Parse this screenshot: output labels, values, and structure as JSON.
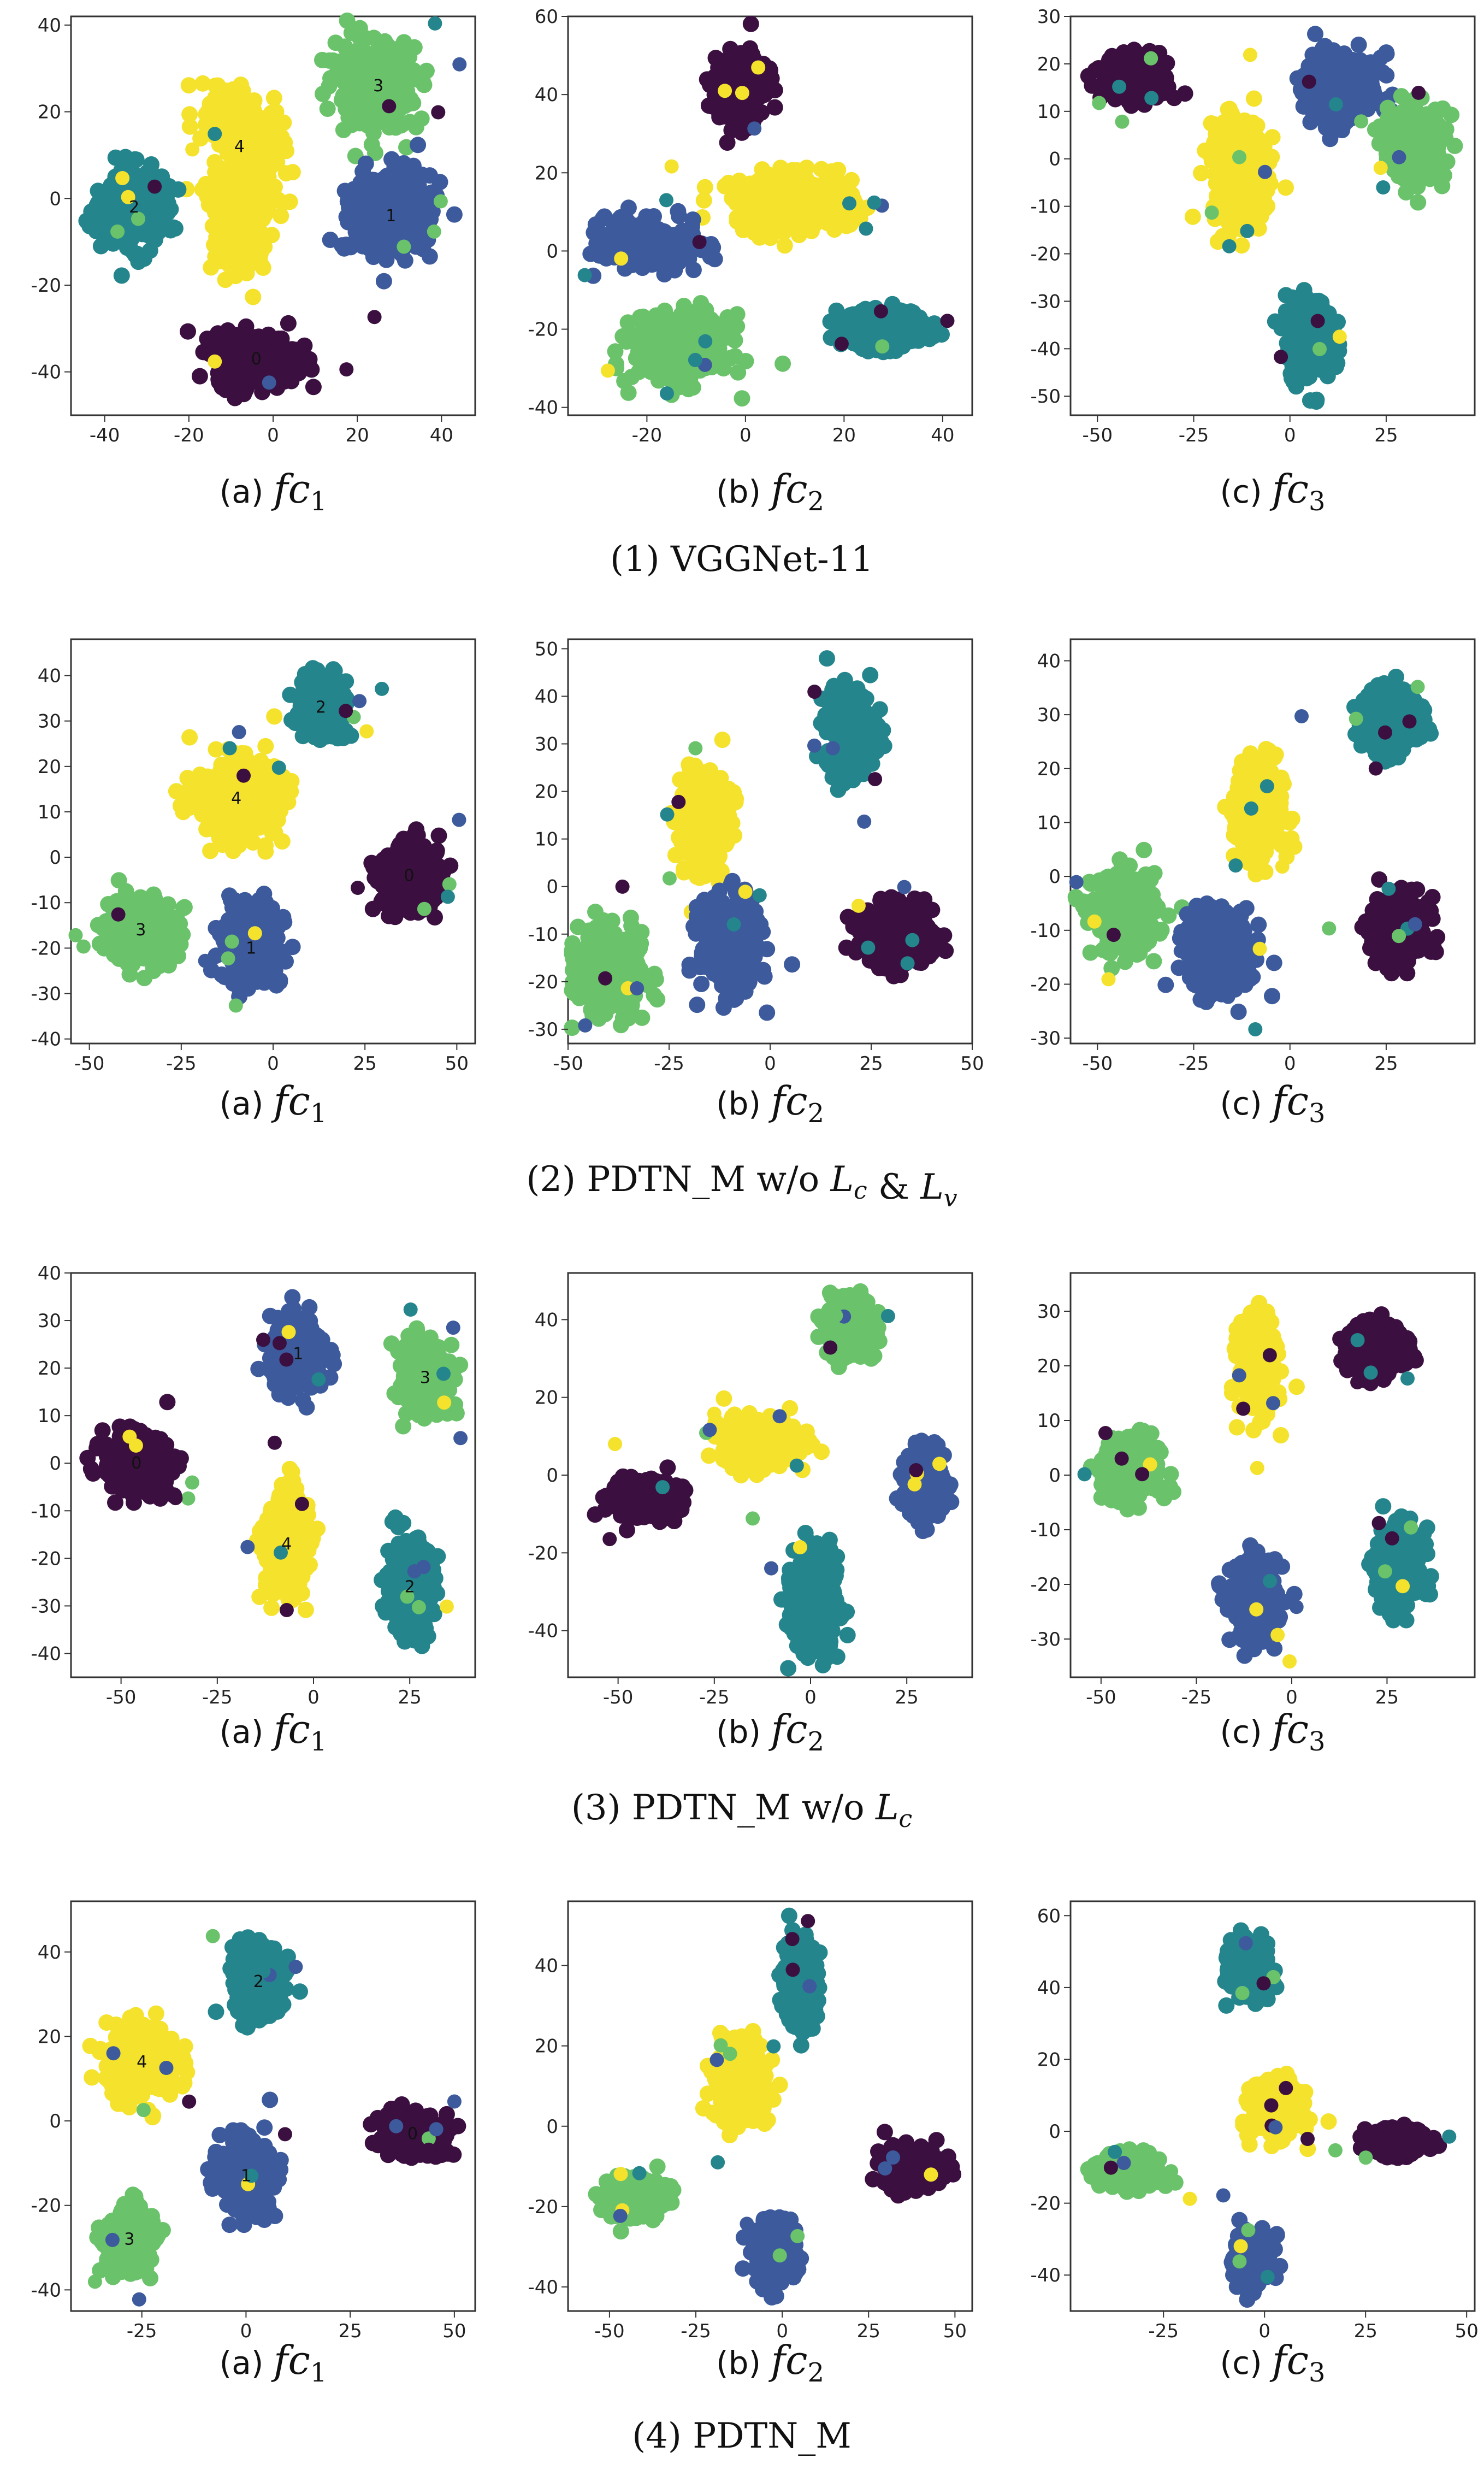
{
  "colors": {
    "c0": "#3b0f3f",
    "c1": "#3c5a9c",
    "c2": "#24858c",
    "c3": "#6ac36b",
    "c4": "#f5e22c"
  },
  "chart_data": [
    {
      "type": "scatter",
      "group": "(1) VGGNet-11",
      "panel": "(a)",
      "fc_sub": "1",
      "xlim": [
        -48,
        48
      ],
      "ylim": [
        -50,
        42
      ],
      "xticks": [
        -40,
        -20,
        0,
        20,
        40
      ],
      "yticks": [
        -40,
        -20,
        0,
        20,
        40
      ],
      "clusters": [
        {
          "cls": 4,
          "label": "4",
          "cx": -8,
          "cy": 12,
          "sx": 8,
          "sy": 8,
          "n": 200,
          "shape": [
            [
              -14,
              22
            ],
            [
              -2,
              12
            ],
            [
              -8,
              2
            ],
            [
              -6,
              -14
            ]
          ]
        },
        {
          "cls": 3,
          "label": "3",
          "cx": 25,
          "cy": 26,
          "sx": 8,
          "sy": 8,
          "n": 180
        },
        {
          "cls": 2,
          "label": "2",
          "cx": -33,
          "cy": -2,
          "sx": 6,
          "sy": 7,
          "n": 170
        },
        {
          "cls": 1,
          "label": "1",
          "cx": 28,
          "cy": -4,
          "sx": 8,
          "sy": 8,
          "n": 180
        },
        {
          "cls": 0,
          "label": "0",
          "cx": -4,
          "cy": -37,
          "sx": 8,
          "sy": 5,
          "n": 170
        }
      ]
    },
    {
      "type": "scatter",
      "group": "(1) VGGNet-11",
      "panel": "(b)",
      "fc_sub": "2",
      "xlim": [
        -36,
        46
      ],
      "ylim": [
        -42,
        60
      ],
      "xticks": [
        -20,
        0,
        20,
        40
      ],
      "yticks": [
        -40,
        -20,
        0,
        20,
        40,
        60
      ],
      "clusters": [
        {
          "cls": 0,
          "label": "",
          "cx": -1,
          "cy": 42,
          "sx": 4,
          "sy": 7,
          "n": 150
        },
        {
          "cls": 4,
          "label": "",
          "cx": 10,
          "cy": 12,
          "sx": 10,
          "sy": 6,
          "n": 190
        },
        {
          "cls": 1,
          "label": "",
          "cx": -20,
          "cy": 2,
          "sx": 8,
          "sy": 5,
          "n": 160
        },
        {
          "cls": 3,
          "label": "",
          "cx": -13,
          "cy": -25,
          "sx": 8,
          "sy": 7,
          "n": 170
        },
        {
          "cls": 2,
          "label": "",
          "cx": 28,
          "cy": -20,
          "sx": 7,
          "sy": 4,
          "n": 160
        }
      ]
    },
    {
      "type": "scatter",
      "group": "(1) VGGNet-11",
      "panel": "(c)",
      "fc_sub": "3",
      "xlim": [
        -57,
        48
      ],
      "ylim": [
        -54,
        30
      ],
      "xticks": [
        -50,
        -25,
        0,
        25
      ],
      "yticks": [
        -50,
        -40,
        -30,
        -20,
        -10,
        0,
        10,
        20,
        30
      ],
      "clusters": [
        {
          "cls": 0,
          "label": "",
          "cx": -40,
          "cy": 17,
          "sx": 7,
          "sy": 4,
          "n": 160
        },
        {
          "cls": 1,
          "label": "",
          "cx": 13,
          "cy": 15,
          "sx": 8,
          "sy": 6,
          "n": 160
        },
        {
          "cls": 3,
          "label": "",
          "cx": 33,
          "cy": 3,
          "sx": 6,
          "sy": 6,
          "n": 160
        },
        {
          "cls": 4,
          "label": "",
          "cx": -13,
          "cy": -3,
          "sx": 6,
          "sy": 9,
          "n": 170
        },
        {
          "cls": 2,
          "label": "",
          "cx": 5,
          "cy": -38,
          "sx": 5,
          "sy": 7,
          "n": 150
        }
      ]
    },
    {
      "type": "scatter",
      "group": "(2) PDTN_M w/o Lc & Lv",
      "panel": "(a)",
      "fc_sub": "1",
      "xlim": [
        -55,
        55
      ],
      "ylim": [
        -41,
        48
      ],
      "xticks": [
        -50,
        -25,
        0,
        25,
        50
      ],
      "yticks": [
        -40,
        -30,
        -20,
        -10,
        0,
        10,
        20,
        30,
        40
      ],
      "clusters": [
        {
          "cls": 2,
          "label": "2",
          "cx": 13,
          "cy": 33,
          "sx": 5,
          "sy": 5,
          "n": 150
        },
        {
          "cls": 4,
          "label": "4",
          "cx": -10,
          "cy": 13,
          "sx": 9,
          "sy": 7,
          "n": 190
        },
        {
          "cls": 0,
          "label": "0",
          "cx": 37,
          "cy": -4,
          "sx": 7,
          "sy": 6,
          "n": 160
        },
        {
          "cls": 3,
          "label": "3",
          "cx": -36,
          "cy": -16,
          "sx": 8,
          "sy": 6,
          "n": 170
        },
        {
          "cls": 1,
          "label": "1",
          "cx": -6,
          "cy": -20,
          "sx": 6,
          "sy": 7,
          "n": 170
        }
      ]
    },
    {
      "type": "scatter",
      "group": "(2) PDTN_M w/o Lc & Lv",
      "panel": "(b)",
      "fc_sub": "2",
      "xlim": [
        -50,
        50
      ],
      "ylim": [
        -33,
        52
      ],
      "xticks": [
        -50,
        -25,
        0,
        25,
        50
      ],
      "yticks": [
        -30,
        -20,
        -10,
        0,
        10,
        20,
        30,
        40,
        50
      ],
      "clusters": [
        {
          "cls": 2,
          "label": "",
          "cx": 20,
          "cy": 33,
          "sx": 5,
          "sy": 7,
          "n": 150
        },
        {
          "cls": 4,
          "label": "",
          "cx": -16,
          "cy": 13,
          "sx": 5,
          "sy": 9,
          "n": 180
        },
        {
          "cls": 0,
          "label": "",
          "cx": 32,
          "cy": -10,
          "sx": 7,
          "sy": 5,
          "n": 160
        },
        {
          "cls": 3,
          "label": "",
          "cx": -40,
          "cy": -18,
          "sx": 7,
          "sy": 7,
          "n": 170
        },
        {
          "cls": 1,
          "label": "",
          "cx": -10,
          "cy": -12,
          "sx": 6,
          "sy": 8,
          "n": 170
        }
      ]
    },
    {
      "type": "scatter",
      "group": "(2) PDTN_M w/o Lc & Lv",
      "panel": "(c)",
      "fc_sub": "3",
      "xlim": [
        -57,
        48
      ],
      "ylim": [
        -31,
        44
      ],
      "xticks": [
        -50,
        -25,
        0,
        25
      ],
      "yticks": [
        -30,
        -20,
        -10,
        0,
        10,
        20,
        30,
        40
      ],
      "clusters": [
        {
          "cls": 2,
          "label": "",
          "cx": 26,
          "cy": 29,
          "sx": 6,
          "sy": 5,
          "n": 150
        },
        {
          "cls": 4,
          "label": "",
          "cx": -8,
          "cy": 12,
          "sx": 5,
          "sy": 8,
          "n": 170
        },
        {
          "cls": 0,
          "label": "",
          "cx": 28,
          "cy": -10,
          "sx": 6,
          "sy": 5,
          "n": 160
        },
        {
          "cls": 3,
          "label": "",
          "cx": -43,
          "cy": -7,
          "sx": 7,
          "sy": 6,
          "n": 170
        },
        {
          "cls": 1,
          "label": "",
          "cx": -18,
          "cy": -14,
          "sx": 7,
          "sy": 6,
          "n": 170
        }
      ]
    },
    {
      "type": "scatter",
      "group": "(3) PDTN_M w/o Lc",
      "panel": "(a)",
      "fc_sub": "1",
      "xlim": [
        -63,
        42
      ],
      "ylim": [
        -45,
        40
      ],
      "xticks": [
        -50,
        -25,
        0,
        25
      ],
      "yticks": [
        -40,
        -30,
        -20,
        -10,
        0,
        10,
        20,
        30,
        40
      ],
      "clusters": [
        {
          "cls": 1,
          "label": "1",
          "cx": -4,
          "cy": 23,
          "sx": 6,
          "sy": 6,
          "n": 160
        },
        {
          "cls": 3,
          "label": "3",
          "cx": 29,
          "cy": 18,
          "sx": 5,
          "sy": 6,
          "n": 150
        },
        {
          "cls": 0,
          "label": "0",
          "cx": -46,
          "cy": 0,
          "sx": 7,
          "sy": 5,
          "n": 160
        },
        {
          "cls": 4,
          "label": "4",
          "cx": -7,
          "cy": -17,
          "sx": 5,
          "sy": 9,
          "n": 170
        },
        {
          "cls": 2,
          "label": "2",
          "cx": 25,
          "cy": -26,
          "sx": 5,
          "sy": 8,
          "n": 160
        }
      ]
    },
    {
      "type": "scatter",
      "group": "(3) PDTN_M w/o Lc",
      "panel": "(b)",
      "fc_sub": "2",
      "xlim": [
        -63,
        42
      ],
      "ylim": [
        -52,
        52
      ],
      "xticks": [
        -50,
        -25,
        0,
        25
      ],
      "yticks": [
        -40,
        -20,
        0,
        20,
        40
      ],
      "clusters": [
        {
          "cls": 3,
          "label": "",
          "cx": 10,
          "cy": 37,
          "sx": 5,
          "sy": 6,
          "n": 150
        },
        {
          "cls": 4,
          "label": "",
          "cx": -13,
          "cy": 9,
          "sx": 8,
          "sy": 5,
          "n": 170
        },
        {
          "cls": 0,
          "label": "",
          "cx": -43,
          "cy": -6,
          "sx": 7,
          "sy": 4,
          "n": 150
        },
        {
          "cls": 1,
          "label": "",
          "cx": 30,
          "cy": -2,
          "sx": 4,
          "sy": 7,
          "n": 150
        },
        {
          "cls": 2,
          "label": "",
          "cx": 1,
          "cy": -33,
          "sx": 5,
          "sy": 10,
          "n": 170
        }
      ]
    },
    {
      "type": "scatter",
      "group": "(3) PDTN_M w/o Lc",
      "panel": "(c)",
      "fc_sub": "3",
      "xlim": [
        -58,
        48
      ],
      "ylim": [
        -37,
        37
      ],
      "xticks": [
        -50,
        -25,
        0,
        25
      ],
      "yticks": [
        -30,
        -20,
        -10,
        0,
        10,
        20,
        30
      ],
      "clusters": [
        {
          "cls": 4,
          "label": "",
          "cx": -9,
          "cy": 20,
          "sx": 4,
          "sy": 7,
          "n": 160
        },
        {
          "cls": 0,
          "label": "",
          "cx": 22,
          "cy": 23,
          "sx": 6,
          "sy": 4,
          "n": 150
        },
        {
          "cls": 3,
          "label": "",
          "cx": -42,
          "cy": 1,
          "sx": 6,
          "sy": 5,
          "n": 160
        },
        {
          "cls": 2,
          "label": "",
          "cx": 28,
          "cy": -17,
          "sx": 5,
          "sy": 6,
          "n": 160
        },
        {
          "cls": 1,
          "label": "",
          "cx": -10,
          "cy": -23,
          "sx": 5,
          "sy": 6,
          "n": 160
        }
      ]
    },
    {
      "type": "scatter",
      "group": "(4) PDTN_M",
      "panel": "(a)",
      "fc_sub": "1",
      "xlim": [
        -42,
        55
      ],
      "ylim": [
        -45,
        52
      ],
      "xticks": [
        -25,
        0,
        25,
        50
      ],
      "yticks": [
        -40,
        -20,
        0,
        20,
        40
      ],
      "clusters": [
        {
          "cls": 2,
          "label": "2",
          "cx": 3,
          "cy": 33,
          "sx": 5,
          "sy": 7,
          "n": 150
        },
        {
          "cls": 4,
          "label": "4",
          "cx": -25,
          "cy": 14,
          "sx": 7,
          "sy": 7,
          "n": 170
        },
        {
          "cls": 0,
          "label": "0",
          "cx": 40,
          "cy": -3,
          "sx": 6,
          "sy": 4,
          "n": 150
        },
        {
          "cls": 1,
          "label": "1",
          "cx": 0,
          "cy": -13,
          "sx": 5,
          "sy": 7,
          "n": 160
        },
        {
          "cls": 3,
          "label": "3",
          "cx": -28,
          "cy": -28,
          "sx": 5,
          "sy": 6,
          "n": 160
        }
      ]
    },
    {
      "type": "scatter",
      "group": "(4) PDTN_M",
      "panel": "(b)",
      "fc_sub": "2",
      "xlim": [
        -62,
        55
      ],
      "ylim": [
        -46,
        56
      ],
      "xticks": [
        -50,
        -25,
        0,
        25,
        50
      ],
      "yticks": [
        -40,
        -20,
        0,
        20,
        40
      ],
      "clusters": [
        {
          "cls": 2,
          "label": "",
          "cx": 5,
          "cy": 36,
          "sx": 4,
          "sy": 9,
          "n": 150
        },
        {
          "cls": 4,
          "label": "",
          "cx": -12,
          "cy": 10,
          "sx": 6,
          "sy": 8,
          "n": 170
        },
        {
          "cls": 0,
          "label": "",
          "cx": 38,
          "cy": -10,
          "sx": 7,
          "sy": 4,
          "n": 150
        },
        {
          "cls": 3,
          "label": "",
          "cx": -42,
          "cy": -18,
          "sx": 7,
          "sy": 4,
          "n": 150
        },
        {
          "cls": 1,
          "label": "",
          "cx": -2,
          "cy": -32,
          "sx": 5,
          "sy": 6,
          "n": 160
        }
      ]
    },
    {
      "type": "scatter",
      "group": "(4) PDTN_M",
      "panel": "(c)",
      "fc_sub": "3",
      "xlim": [
        -48,
        52
      ],
      "ylim": [
        -50,
        64
      ],
      "xticks": [
        -25,
        0,
        25,
        50
      ],
      "yticks": [
        -40,
        -20,
        0,
        20,
        40,
        60
      ],
      "clusters": [
        {
          "cls": 2,
          "label": "",
          "cx": -4,
          "cy": 45,
          "sx": 4,
          "sy": 6,
          "n": 150
        },
        {
          "cls": 4,
          "label": "",
          "cx": 3,
          "cy": 6,
          "sx": 5,
          "sy": 6,
          "n": 160
        },
        {
          "cls": 0,
          "label": "",
          "cx": 33,
          "cy": -3,
          "sx": 6,
          "sy": 3,
          "n": 150
        },
        {
          "cls": 3,
          "label": "",
          "cx": -33,
          "cy": -11,
          "sx": 6,
          "sy": 4,
          "n": 150
        },
        {
          "cls": 1,
          "label": "",
          "cx": -3,
          "cy": -36,
          "sx": 4,
          "sy": 6,
          "n": 150
        }
      ]
    }
  ],
  "panel_captions": {
    "a": "(a)",
    "b": "(b)",
    "c": "(c)",
    "fc": "fc"
  },
  "group_captions": [
    {
      "num": "(1)",
      "text": "VGGNet-11",
      "suffix": []
    },
    {
      "num": "(2)",
      "text": "PDTN_M w/o ",
      "suffix": [
        [
          "L",
          "c"
        ],
        [
          " & ",
          ""
        ],
        [
          "L",
          "v"
        ]
      ]
    },
    {
      "num": "(3)",
      "text": "PDTN_M w/o ",
      "suffix": [
        [
          "L",
          "c"
        ]
      ]
    },
    {
      "num": "(4)",
      "text": "PDTN_M",
      "suffix": []
    }
  ]
}
